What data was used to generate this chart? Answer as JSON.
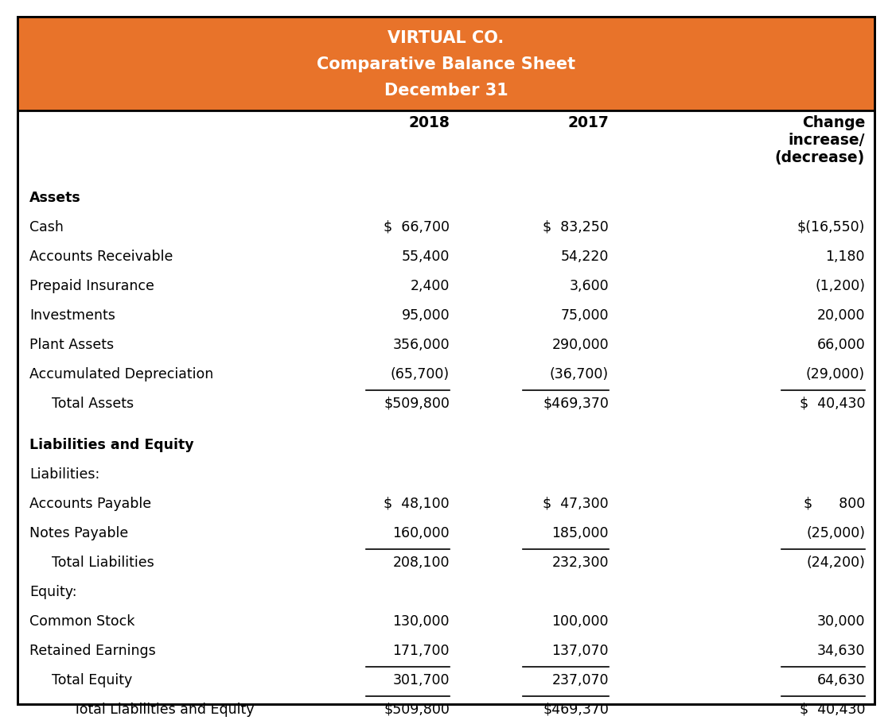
{
  "title_line1": "VIRTUAL CO.",
  "title_line2": "Comparative Balance Sheet",
  "title_line3": "December 31",
  "header_bg": "#E8732A",
  "header_text_color": "#FFFFFF",
  "col_headers": [
    "2018",
    "2017",
    "Change\nincrease/\n(decrease)"
  ],
  "rows": [
    {
      "label": "Assets",
      "bold": true,
      "vals": [
        "",
        "",
        ""
      ],
      "ul": [
        false,
        false,
        false
      ],
      "indent": 0,
      "gap_after": false
    },
    {
      "label": "Cash",
      "bold": false,
      "vals": [
        "$  66,700",
        "$  83,250",
        "$(16,550)"
      ],
      "ul": [
        false,
        false,
        false
      ],
      "indent": 0,
      "gap_after": false
    },
    {
      "label": "Accounts Receivable",
      "bold": false,
      "vals": [
        "55,400",
        "54,220",
        "1,180"
      ],
      "ul": [
        false,
        false,
        false
      ],
      "indent": 0,
      "gap_after": false
    },
    {
      "label": "Prepaid Insurance",
      "bold": false,
      "vals": [
        "2,400",
        "3,600",
        "(1,200)"
      ],
      "ul": [
        false,
        false,
        false
      ],
      "indent": 0,
      "gap_after": false
    },
    {
      "label": "Investments",
      "bold": false,
      "vals": [
        "95,000",
        "75,000",
        "20,000"
      ],
      "ul": [
        false,
        false,
        false
      ],
      "indent": 0,
      "gap_after": false
    },
    {
      "label": "Plant Assets",
      "bold": false,
      "vals": [
        "356,000",
        "290,000",
        "66,000"
      ],
      "ul": [
        false,
        false,
        false
      ],
      "indent": 0,
      "gap_after": false
    },
    {
      "label": "Accumulated Depreciation",
      "bold": false,
      "vals": [
        "(65,700)",
        "(36,700)",
        "(29,000)"
      ],
      "ul": [
        true,
        true,
        true
      ],
      "indent": 0,
      "gap_after": false
    },
    {
      "label": "Total Assets",
      "bold": false,
      "vals": [
        "$509,800",
        "$469,370",
        "$  40,430"
      ],
      "ul": [
        false,
        false,
        false
      ],
      "indent": 1,
      "gap_after": true
    },
    {
      "label": "Liabilities and Equity",
      "bold": true,
      "vals": [
        "",
        "",
        ""
      ],
      "ul": [
        false,
        false,
        false
      ],
      "indent": 0,
      "gap_after": false
    },
    {
      "label": "Liabilities:",
      "bold": false,
      "vals": [
        "",
        "",
        ""
      ],
      "ul": [
        false,
        false,
        false
      ],
      "indent": 0,
      "gap_after": false
    },
    {
      "label": "Accounts Payable",
      "bold": false,
      "vals": [
        "$  48,100",
        "$  47,300",
        "$      800"
      ],
      "ul": [
        false,
        false,
        false
      ],
      "indent": 0,
      "gap_after": false
    },
    {
      "label": "Notes Payable",
      "bold": false,
      "vals": [
        "160,000",
        "185,000",
        "(25,000)"
      ],
      "ul": [
        true,
        true,
        true
      ],
      "indent": 0,
      "gap_after": false
    },
    {
      "label": "Total Liabilities",
      "bold": false,
      "vals": [
        "208,100",
        "232,300",
        "(24,200)"
      ],
      "ul": [
        false,
        false,
        false
      ],
      "indent": 1,
      "gap_after": false
    },
    {
      "label": "Equity:",
      "bold": false,
      "vals": [
        "",
        "",
        ""
      ],
      "ul": [
        false,
        false,
        false
      ],
      "indent": 0,
      "gap_after": false
    },
    {
      "label": "Common Stock",
      "bold": false,
      "vals": [
        "130,000",
        "100,000",
        "30,000"
      ],
      "ul": [
        false,
        false,
        false
      ],
      "indent": 0,
      "gap_after": false
    },
    {
      "label": "Retained Earnings",
      "bold": false,
      "vals": [
        "171,700",
        "137,070",
        "34,630"
      ],
      "ul": [
        true,
        true,
        true
      ],
      "indent": 0,
      "gap_after": false
    },
    {
      "label": "Total Equity",
      "bold": false,
      "vals": [
        "301,700",
        "237,070",
        "64,630"
      ],
      "ul": [
        true,
        true,
        true
      ],
      "indent": 1,
      "gap_after": false
    },
    {
      "label": "Total Liabilities and Equity",
      "bold": false,
      "vals": [
        "$509,800",
        "$469,370",
        "$  40,430"
      ],
      "ul": [
        false,
        false,
        false
      ],
      "indent": 2,
      "gap_after": false
    }
  ],
  "text_color": "#000000",
  "border_color": "#000000",
  "font_size": 12.5,
  "header_font_size": 15
}
